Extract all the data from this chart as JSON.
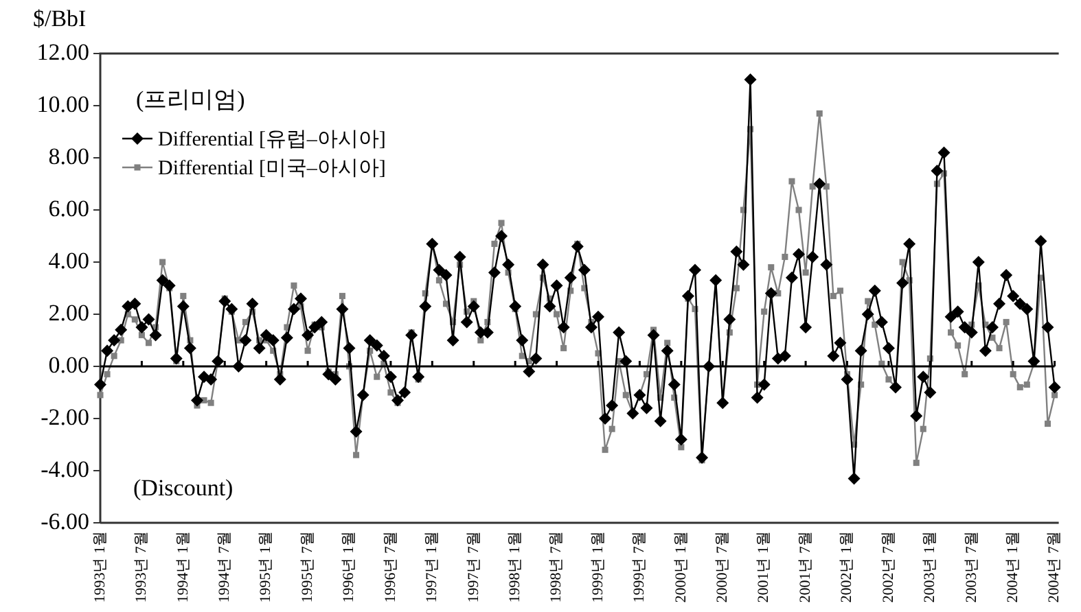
{
  "chart_data": {
    "type": "line",
    "ylabel": "$/BbI",
    "annotations": [
      "(프리미엄)",
      "(Discount)"
    ],
    "categories": [
      "1993년 1월",
      null,
      null,
      null,
      null,
      null,
      "1993년 7월",
      null,
      null,
      null,
      null,
      null,
      "1994년 1월",
      null,
      null,
      null,
      null,
      null,
      "1994년 7월",
      null,
      null,
      null,
      null,
      null,
      "1995년 1월",
      null,
      null,
      null,
      null,
      null,
      "1995년 7월",
      null,
      null,
      null,
      null,
      null,
      "1996년 1월",
      null,
      null,
      null,
      null,
      null,
      "1996년 7월",
      null,
      null,
      null,
      null,
      null,
      "1997년 1월",
      null,
      null,
      null,
      null,
      null,
      "1997년 7월",
      null,
      null,
      null,
      null,
      null,
      "1998년 1월",
      null,
      null,
      null,
      null,
      null,
      "1998년 7월",
      null,
      null,
      null,
      null,
      null,
      "1999년 1월",
      null,
      null,
      null,
      null,
      null,
      "1999년 7월",
      null,
      null,
      null,
      null,
      null,
      "2000년 1월",
      null,
      null,
      null,
      null,
      null,
      "2000년 7월",
      null,
      null,
      null,
      null,
      null,
      "2001년 1월",
      null,
      null,
      null,
      null,
      null,
      "2001년 7월",
      null,
      null,
      null,
      null,
      null,
      "2002년 1월",
      null,
      null,
      null,
      null,
      null,
      "2002년 7월",
      null,
      null,
      null,
      null,
      null,
      "2003년 1월",
      null,
      null,
      null,
      null,
      null,
      "2003년 7월",
      null,
      null,
      null,
      null,
      null,
      "2004년 1월",
      null,
      null,
      null,
      null,
      null,
      "2004년 7월"
    ],
    "series": [
      {
        "name": "Differential [유럽–아시아]",
        "color": "#000000",
        "marker": "diamond",
        "values": [
          -0.7,
          0.6,
          1.0,
          1.4,
          2.3,
          2.4,
          1.5,
          1.8,
          1.2,
          3.3,
          3.1,
          0.3,
          2.3,
          0.7,
          -1.3,
          -0.4,
          -0.5,
          0.2,
          2.5,
          2.2,
          0.0,
          1.0,
          2.4,
          0.7,
          1.2,
          1.0,
          -0.5,
          1.1,
          2.2,
          2.6,
          1.2,
          1.5,
          1.7,
          -0.3,
          -0.5,
          2.2,
          0.7,
          -2.5,
          -1.1,
          1.0,
          0.8,
          0.4,
          -0.4,
          -1.3,
          -1.0,
          1.2,
          -0.4,
          2.3,
          4.7,
          3.7,
          3.5,
          1.0,
          4.2,
          1.7,
          2.3,
          1.3,
          1.3,
          3.6,
          5.0,
          3.9,
          2.3,
          1.0,
          -0.2,
          0.3,
          3.9,
          2.3,
          3.1,
          1.5,
          3.4,
          4.6,
          3.7,
          1.5,
          1.9,
          -2.0,
          -1.5,
          1.3,
          0.2,
          -1.8,
          -1.1,
          -1.6,
          1.2,
          -2.1,
          0.6,
          -0.7,
          -2.8,
          2.7,
          3.7,
          -3.5,
          0.0,
          3.3,
          -1.4,
          1.8,
          4.4,
          3.9,
          11.0,
          -1.2,
          -0.7,
          2.8,
          0.3,
          0.4,
          3.4,
          4.3,
          1.5,
          4.2,
          7.0,
          3.9,
          0.4,
          0.9,
          -0.5,
          -4.3,
          0.6,
          2.0,
          2.9,
          1.7,
          0.7,
          -0.8,
          3.2,
          4.7,
          -1.9,
          -0.4,
          -1.0,
          7.5,
          8.2,
          1.9,
          2.1,
          1.5,
          1.3,
          4.0,
          0.6,
          1.5,
          2.4,
          3.5,
          2.7,
          2.4,
          2.2,
          0.2,
          4.8,
          1.5,
          -0.8
        ]
      },
      {
        "name": "Differential [미국–아시아]",
        "color": "#808080",
        "marker": "square",
        "values": [
          -1.1,
          -0.3,
          0.4,
          1.0,
          2.0,
          1.8,
          1.2,
          0.9,
          1.5,
          4.0,
          3.0,
          0.2,
          2.7,
          1.0,
          -1.5,
          -1.3,
          -1.4,
          0.2,
          2.6,
          2.1,
          1.0,
          1.7,
          2.1,
          1.0,
          1.0,
          0.6,
          -0.3,
          1.5,
          3.1,
          2.3,
          0.6,
          1.6,
          1.5,
          -0.2,
          -0.3,
          2.7,
          0.0,
          -3.4,
          -1.1,
          0.6,
          -0.4,
          0.1,
          -1.0,
          -1.4,
          -1.0,
          1.3,
          -0.5,
          2.8,
          4.7,
          3.3,
          2.4,
          1.7,
          3.9,
          2.1,
          2.5,
          1.0,
          1.7,
          4.7,
          5.5,
          3.6,
          2.2,
          0.4,
          0.2,
          2.0,
          3.4,
          2.6,
          2.0,
          0.7,
          2.9,
          4.7,
          3.0,
          1.7,
          0.5,
          -3.2,
          -2.4,
          0.2,
          -1.1,
          -1.8,
          -1.1,
          -0.3,
          1.4,
          -1.2,
          0.9,
          -1.2,
          -3.1,
          2.6,
          2.2,
          -3.6,
          0.0,
          3.3,
          -1.4,
          1.3,
          3.0,
          6.0,
          9.1,
          -0.7,
          2.1,
          3.8,
          2.8,
          4.2,
          7.1,
          6.0,
          3.6,
          6.9,
          9.7,
          6.9,
          2.7,
          2.9,
          -0.3,
          -3.0,
          -0.7,
          2.5,
          1.6,
          0.1,
          -0.5,
          -0.8,
          4.0,
          3.3,
          -3.7,
          -2.4,
          0.3,
          7.0,
          7.4,
          1.3,
          0.8,
          -0.3,
          1.6,
          3.1,
          1.6,
          1.1,
          0.7,
          1.7,
          -0.3,
          -0.8,
          -0.7,
          0.1,
          3.4,
          -2.2,
          -1.1
        ]
      }
    ],
    "ylim": [
      -6,
      12
    ],
    "yticks": [
      {
        "value": -6,
        "label": "-6.00"
      },
      {
        "value": -4,
        "label": "-4.00"
      },
      {
        "value": -2,
        "label": "-2.00"
      },
      {
        "value": 0,
        "label": "0.00"
      },
      {
        "value": 2,
        "label": "2.00"
      },
      {
        "value": 4,
        "label": "4.00"
      },
      {
        "value": 6,
        "label": "6.00"
      },
      {
        "value": 8,
        "label": "8.00"
      },
      {
        "value": 10,
        "label": "10.00"
      },
      {
        "value": 12,
        "label": "12.00"
      }
    ],
    "ref_lines": [
      {
        "axis": "y",
        "value": 0,
        "color": "#000000"
      }
    ],
    "grid": false,
    "legend": "top left",
    "line_style": "solid"
  }
}
